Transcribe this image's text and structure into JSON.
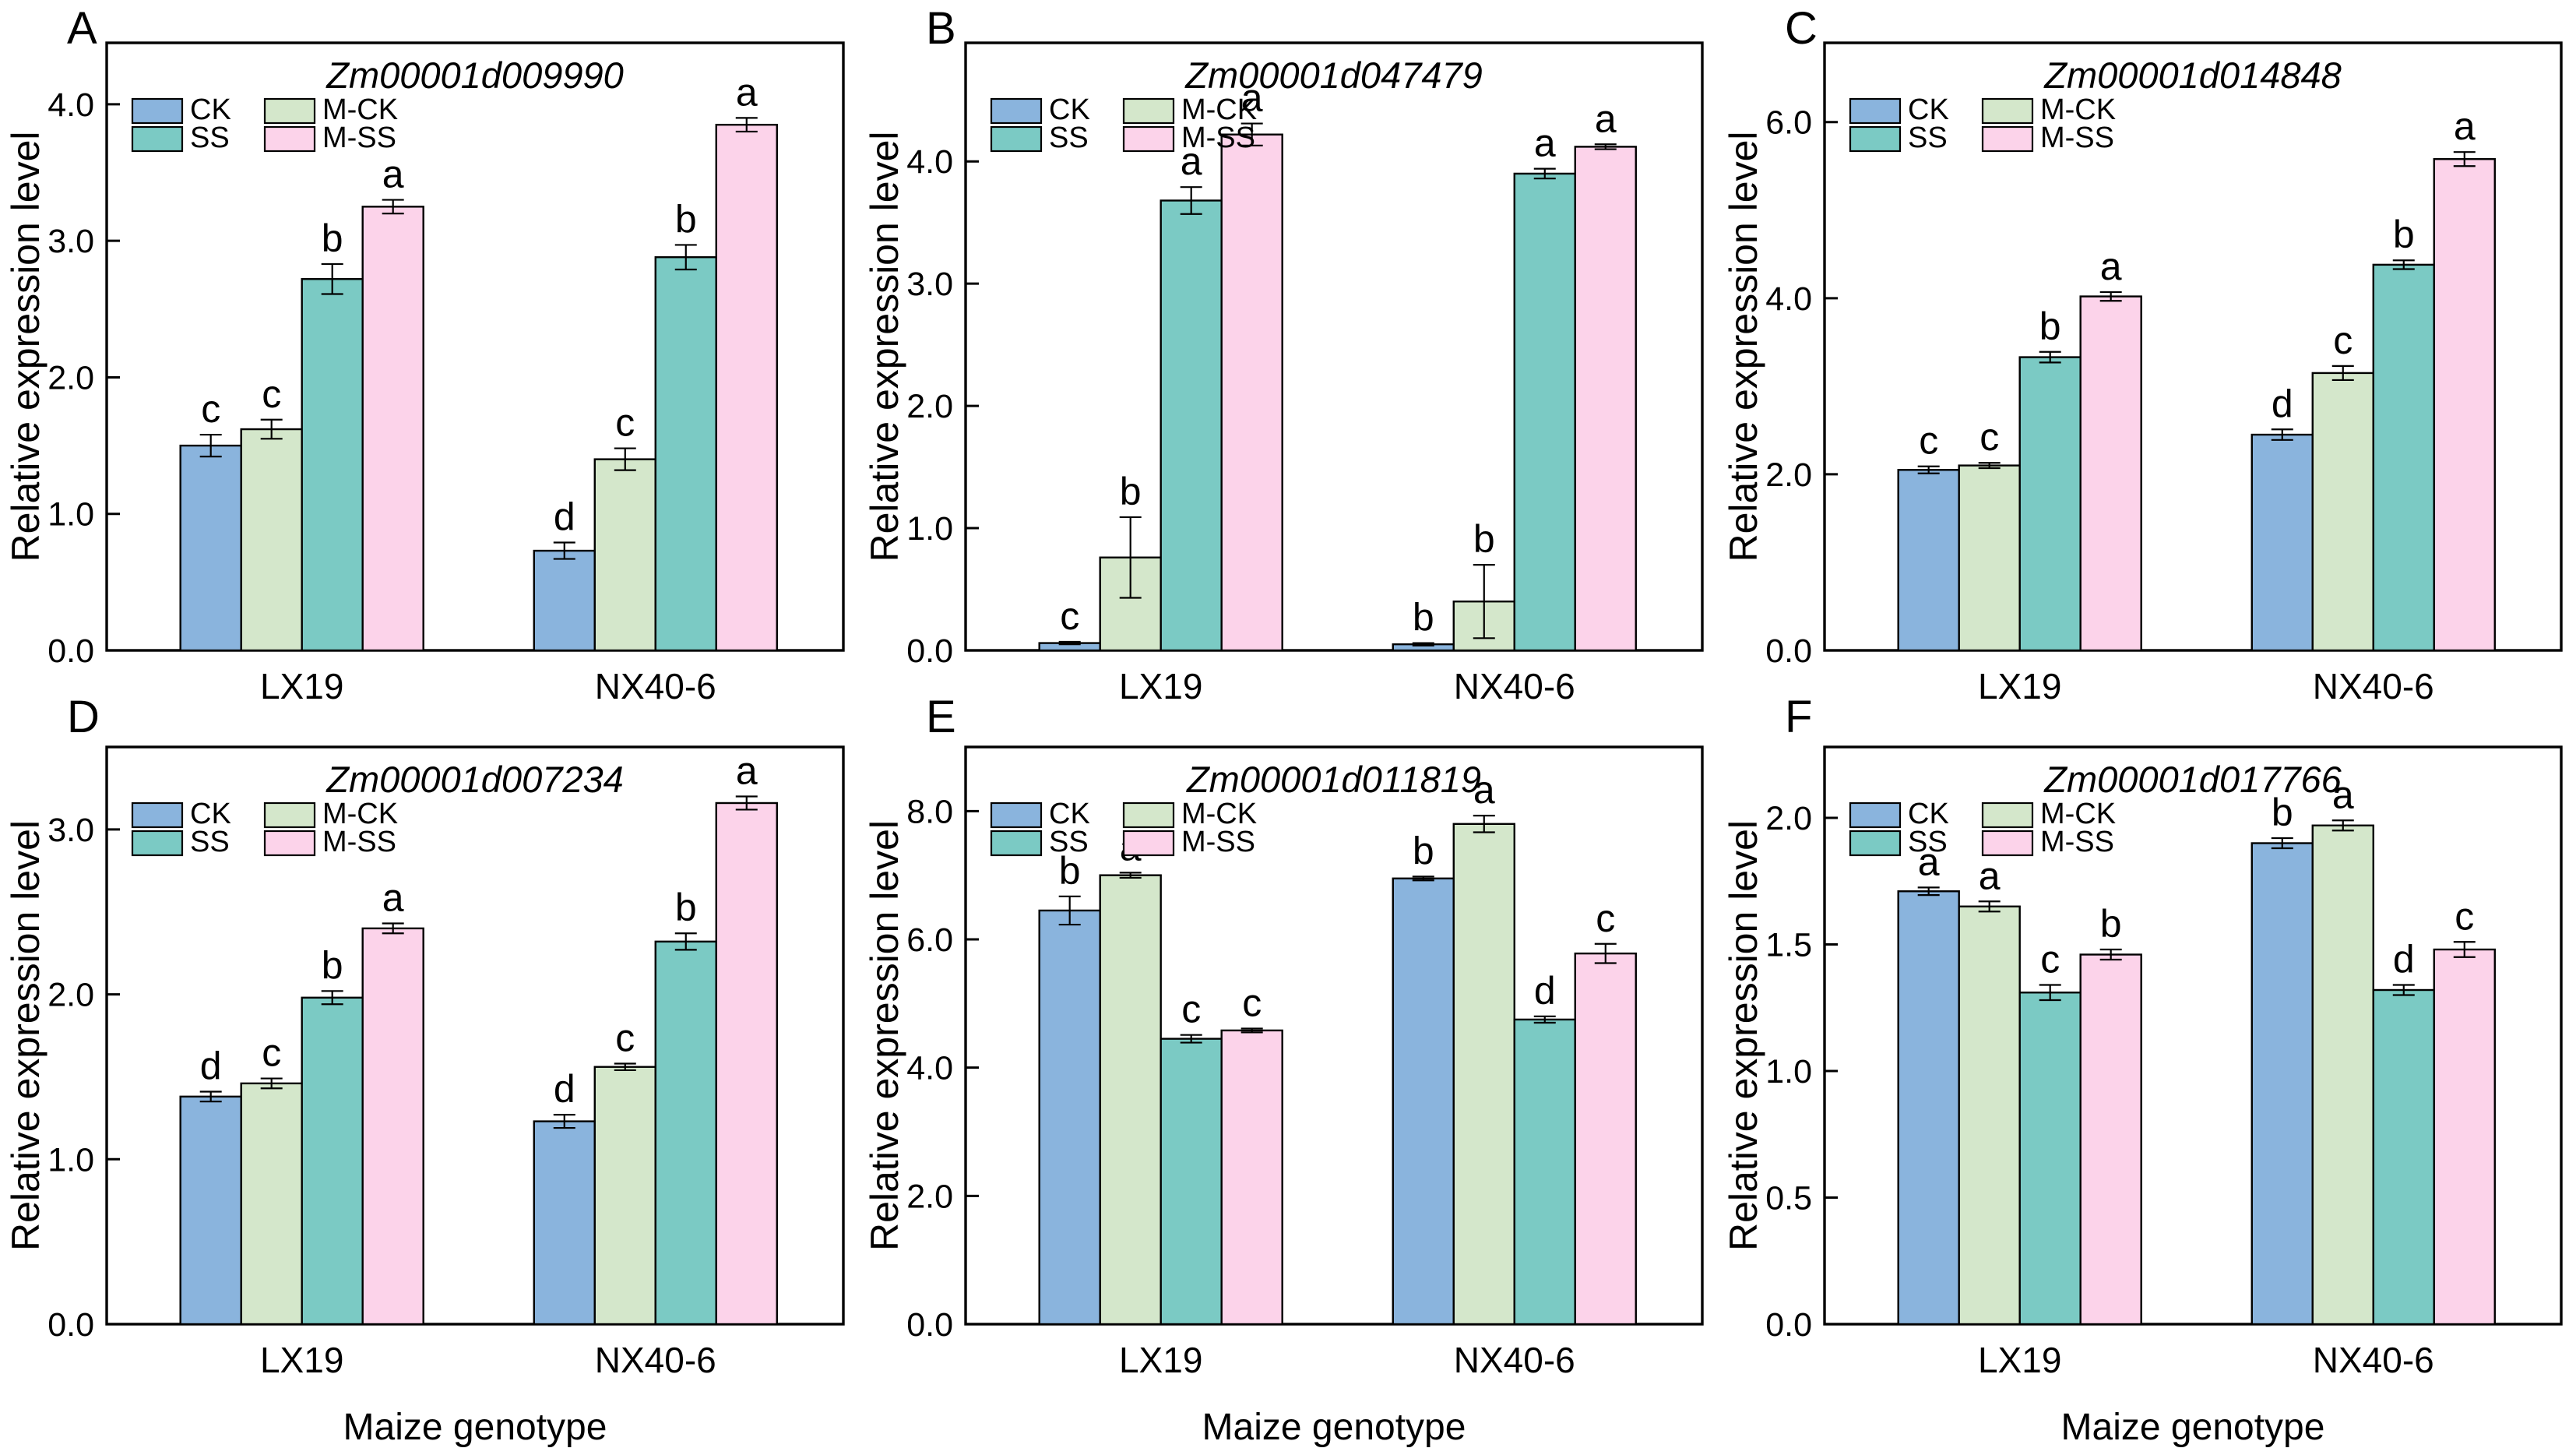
{
  "figure": {
    "background": "#ffffff",
    "ylabel": "Relative expression level",
    "xlabel": "Maize genotype",
    "categories": [
      "LX19",
      "NX40-6"
    ],
    "legend": {
      "columns": [
        [
          "CK",
          "SS"
        ],
        [
          "M-CK",
          "M-SS"
        ]
      ]
    },
    "colors": {
      "CK": "#8AB4DD",
      "SS": "#7BCAC4",
      "M-CK": "#D4E7CB",
      "M-SS": "#FCD3EA",
      "bar_border": "#000000",
      "axis": "#000000",
      "text": "#000000"
    }
  },
  "chart_data": [
    {
      "type": "bar",
      "panel": "A",
      "title": "Zm00001d009990",
      "ylim": [
        0,
        4.45
      ],
      "yticks": [
        "0.0",
        "1.0",
        "2.0",
        "3.0",
        "4.0"
      ],
      "show_xlabel": false,
      "categories": [
        "LX19",
        "NX40-6"
      ],
      "series": [
        {
          "name": "CK",
          "values": [
            1.5,
            0.73
          ],
          "errors": [
            0.08,
            0.06
          ],
          "letters": [
            "c",
            "d"
          ]
        },
        {
          "name": "M-CK",
          "values": [
            1.62,
            1.4
          ],
          "errors": [
            0.07,
            0.08
          ],
          "letters": [
            "c",
            "c"
          ]
        },
        {
          "name": "SS",
          "values": [
            2.72,
            2.88
          ],
          "errors": [
            0.11,
            0.09
          ],
          "letters": [
            "b",
            "b"
          ]
        },
        {
          "name": "M-SS",
          "values": [
            3.25,
            3.85
          ],
          "errors": [
            0.05,
            0.05
          ],
          "letters": [
            "a",
            "a"
          ]
        }
      ]
    },
    {
      "type": "bar",
      "panel": "B",
      "title": "Zm00001d047479",
      "ylim": [
        0,
        4.97
      ],
      "yticks": [
        "0.0",
        "1.0",
        "2.0",
        "3.0",
        "4.0"
      ],
      "show_xlabel": false,
      "categories": [
        "LX19",
        "NX40-6"
      ],
      "series": [
        {
          "name": "CK",
          "values": [
            0.06,
            0.05
          ],
          "errors": [
            0.01,
            0.01
          ],
          "letters": [
            "c",
            "b"
          ]
        },
        {
          "name": "M-CK",
          "values": [
            0.76,
            0.4
          ],
          "errors": [
            0.33,
            0.3
          ],
          "letters": [
            "b",
            "b"
          ]
        },
        {
          "name": "SS",
          "values": [
            3.68,
            3.9
          ],
          "errors": [
            0.11,
            0.04
          ],
          "letters": [
            "a",
            "a"
          ]
        },
        {
          "name": "M-SS",
          "values": [
            4.22,
            4.12
          ],
          "errors": [
            0.09,
            0.02
          ],
          "letters": [
            "a",
            "a"
          ]
        }
      ]
    },
    {
      "type": "bar",
      "panel": "C",
      "title": "Zm00001d014848",
      "ylim": [
        0,
        6.9
      ],
      "yticks": [
        "0.0",
        "2.0",
        "4.0",
        "6.0"
      ],
      "show_xlabel": false,
      "categories": [
        "LX19",
        "NX40-6"
      ],
      "series": [
        {
          "name": "CK",
          "values": [
            2.05,
            2.45
          ],
          "errors": [
            0.04,
            0.06
          ],
          "letters": [
            "c",
            "d"
          ]
        },
        {
          "name": "M-CK",
          "values": [
            2.1,
            3.15
          ],
          "errors": [
            0.03,
            0.08
          ],
          "letters": [
            "c",
            "c"
          ]
        },
        {
          "name": "SS",
          "values": [
            3.33,
            4.38
          ],
          "errors": [
            0.06,
            0.05
          ],
          "letters": [
            "b",
            "b"
          ]
        },
        {
          "name": "M-SS",
          "values": [
            4.02,
            5.58
          ],
          "errors": [
            0.05,
            0.08
          ],
          "letters": [
            "a",
            "a"
          ]
        }
      ]
    },
    {
      "type": "bar",
      "panel": "D",
      "title": "Zm00001d007234",
      "ylim": [
        0,
        3.5
      ],
      "yticks": [
        "0.0",
        "1.0",
        "2.0",
        "3.0"
      ],
      "show_xlabel": true,
      "categories": [
        "LX19",
        "NX40-6"
      ],
      "series": [
        {
          "name": "CK",
          "values": [
            1.38,
            1.23
          ],
          "errors": [
            0.03,
            0.04
          ],
          "letters": [
            "d",
            "d"
          ]
        },
        {
          "name": "M-CK",
          "values": [
            1.46,
            1.56
          ],
          "errors": [
            0.03,
            0.02
          ],
          "letters": [
            "c",
            "c"
          ]
        },
        {
          "name": "SS",
          "values": [
            1.98,
            2.32
          ],
          "errors": [
            0.04,
            0.05
          ],
          "letters": [
            "b",
            "b"
          ]
        },
        {
          "name": "M-SS",
          "values": [
            2.4,
            3.16
          ],
          "errors": [
            0.03,
            0.04
          ],
          "letters": [
            "a",
            "a"
          ]
        }
      ]
    },
    {
      "type": "bar",
      "panel": "E",
      "title": "Zm00001d011819",
      "ylim": [
        0,
        9.0
      ],
      "yticks": [
        "0.0",
        "2.0",
        "4.0",
        "6.0",
        "8.0"
      ],
      "show_xlabel": true,
      "categories": [
        "LX19",
        "NX40-6"
      ],
      "series": [
        {
          "name": "CK",
          "values": [
            6.45,
            6.95
          ],
          "errors": [
            0.22,
            0.03
          ],
          "letters": [
            "b",
            "b"
          ]
        },
        {
          "name": "M-CK",
          "values": [
            7.0,
            7.8
          ],
          "errors": [
            0.04,
            0.13
          ],
          "letters": [
            "a",
            "a"
          ]
        },
        {
          "name": "SS",
          "values": [
            4.45,
            4.75
          ],
          "errors": [
            0.06,
            0.05
          ],
          "letters": [
            "c",
            "d"
          ]
        },
        {
          "name": "M-SS",
          "values": [
            4.58,
            5.78
          ],
          "errors": [
            0.03,
            0.15
          ],
          "letters": [
            "c",
            "c"
          ]
        }
      ]
    },
    {
      "type": "bar",
      "panel": "F",
      "title": "Zm00001d017766",
      "ylim": [
        0,
        2.28
      ],
      "yticks": [
        "0.0",
        "0.5",
        "1.0",
        "1.5",
        "2.0"
      ],
      "show_xlabel": true,
      "categories": [
        "LX19",
        "NX40-6"
      ],
      "series": [
        {
          "name": "CK",
          "values": [
            1.71,
            1.9
          ],
          "errors": [
            0.015,
            0.02
          ],
          "letters": [
            "a",
            "b"
          ]
        },
        {
          "name": "M-CK",
          "values": [
            1.65,
            1.97
          ],
          "errors": [
            0.02,
            0.02
          ],
          "letters": [
            "a",
            "a"
          ]
        },
        {
          "name": "SS",
          "values": [
            1.31,
            1.32
          ],
          "errors": [
            0.03,
            0.02
          ],
          "letters": [
            "c",
            "d"
          ]
        },
        {
          "name": "M-SS",
          "values": [
            1.46,
            1.48
          ],
          "errors": [
            0.02,
            0.03
          ],
          "letters": [
            "b",
            "c"
          ]
        }
      ]
    }
  ]
}
